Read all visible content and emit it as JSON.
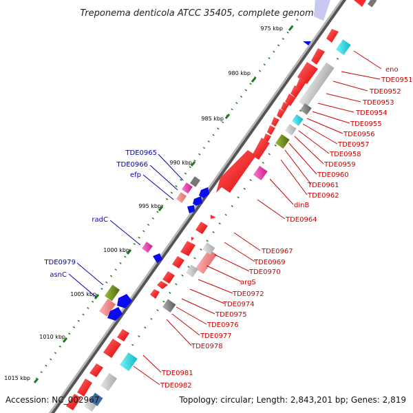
{
  "title": "Treponema denticola ATCC 35405, complete genome",
  "footer": {
    "accession": "Accession: NC_002967",
    "topology": "Topology: circular; Length: 2,843,201 bp; Genes: 2,819"
  },
  "scale_labels": [
    "975 kbp",
    "980 kbp",
    "985 kbp",
    "990 kbp",
    "995 kbp",
    "1000 kbp",
    "1005 kbp",
    "1010 kbp",
    "1015 kbp"
  ],
  "labels_forward": [
    "TDE0965",
    "TDE0966",
    "efp",
    "radC",
    "TDE0979",
    "asnC"
  ],
  "labels_reverse": [
    "eno",
    "TDE0951",
    "TDE0952",
    "TDE0953",
    "TDE0954",
    "TDE0955",
    "TDE0956",
    "TDE0957",
    "TDE0958",
    "TDE0959",
    "TDE0960",
    "TDE0961",
    "TDE0962",
    "dinB",
    "TDE0964",
    "TDE0967",
    "TDE0969",
    "TDE0970",
    "argS",
    "TDE0972",
    "TDE0974",
    "TDE0975",
    "TDE0976",
    "TDE0977",
    "TDE0978",
    "TDE0981",
    "TDE0982"
  ],
  "colors": {
    "backbone": "#8c8c8c",
    "cds": "#ff1f1f",
    "forward_label": "#0000b0",
    "reverse_label": "#cc0000",
    "scale_tick": "#1e7a1e",
    "blast_blue": "#0a0af0",
    "cog_magenta": "#e0329e",
    "cog_pink": "#f08c8c",
    "cog_cyan": "#20d6e0",
    "cog_gray": "#9a9a9a",
    "cog_lightgray": "#c8c8c8",
    "cog_olive": "#6e8c1e"
  }
}
